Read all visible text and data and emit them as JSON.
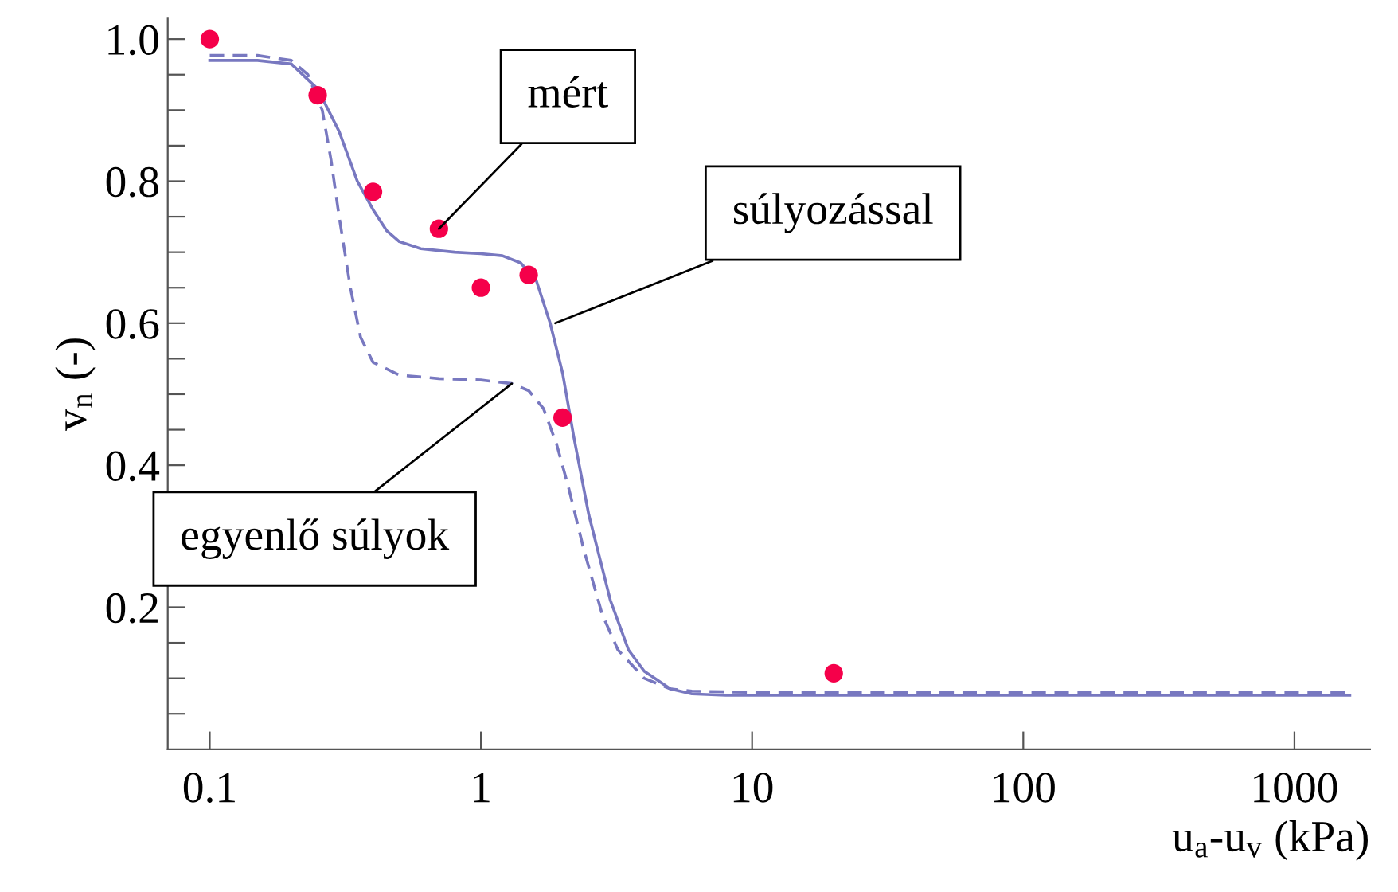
{
  "chart_data": {
    "type": "line",
    "xlabel": "u$_{a}$-u$_{v}$ (kPa)",
    "ylabel": "v$_{n}$ (-)",
    "log": "x",
    "grid": false,
    "legend": false,
    "xlim": [
      0.07,
      1900
    ],
    "ylim": [
      0,
      1.03
    ],
    "xticks": [
      0.1,
      1,
      10,
      100,
      1000
    ],
    "yticks": [
      {
        "value": 0.05,
        "label": null
      },
      {
        "value": 0.1,
        "label": null
      },
      {
        "value": 0.15,
        "label": null
      },
      {
        "value": 0.2,
        "label": "0.2"
      },
      {
        "value": 0.25,
        "label": null
      },
      {
        "value": 0.3,
        "label": null
      },
      {
        "value": 0.35,
        "label": null
      },
      {
        "value": 0.4,
        "label": "0.4"
      },
      {
        "value": 0.45,
        "label": null
      },
      {
        "value": 0.5,
        "label": null
      },
      {
        "value": 0.55,
        "label": null
      },
      {
        "value": 0.6,
        "label": "0.6"
      },
      {
        "value": 0.65,
        "label": null
      },
      {
        "value": 0.7,
        "label": null
      },
      {
        "value": 0.75,
        "label": null
      },
      {
        "value": 0.8,
        "label": "0.8"
      },
      {
        "value": 0.85,
        "label": null
      },
      {
        "value": 0.9,
        "label": null
      },
      {
        "value": 0.95,
        "label": null
      },
      {
        "value": 1.0,
        "label": "1.0"
      }
    ],
    "series": [
      {
        "color": "#7878c0",
        "line_style": "solid",
        "marker": "none",
        "x": [
          0.1,
          0.15,
          0.2,
          0.25,
          0.3,
          0.35,
          0.4,
          0.45,
          0.5,
          0.6,
          0.8,
          1.0,
          1.2,
          1.4,
          1.6,
          1.8,
          2.0,
          2.2,
          2.5,
          3.0,
          3.5,
          4.0,
          5.0,
          6.0,
          8.0,
          20,
          100,
          1600
        ],
        "values": [
          0.97,
          0.97,
          0.965,
          0.93,
          0.87,
          0.8,
          0.76,
          0.73,
          0.715,
          0.705,
          0.7,
          0.698,
          0.695,
          0.685,
          0.66,
          0.6,
          0.53,
          0.44,
          0.33,
          0.21,
          0.14,
          0.11,
          0.085,
          0.078,
          0.076,
          0.076,
          0.076,
          0.076
        ]
      },
      {
        "color": "#7878c0",
        "line_style": "dashed",
        "marker": "none",
        "x": [
          0.1,
          0.15,
          0.2,
          0.23,
          0.26,
          0.28,
          0.3,
          0.33,
          0.36,
          0.4,
          0.5,
          0.7,
          1.0,
          1.3,
          1.5,
          1.7,
          1.9,
          2.1,
          2.4,
          2.8,
          3.2,
          4.0,
          5.0,
          6.0,
          10,
          100,
          1600
        ],
        "values": [
          0.977,
          0.977,
          0.97,
          0.95,
          0.9,
          0.83,
          0.75,
          0.65,
          0.58,
          0.545,
          0.527,
          0.522,
          0.52,
          0.515,
          0.505,
          0.48,
          0.43,
          0.37,
          0.28,
          0.19,
          0.14,
          0.1,
          0.085,
          0.082,
          0.08,
          0.08,
          0.08
        ]
      },
      {
        "type": "scatter",
        "color": "#f5004a",
        "marker": "circle",
        "x": [
          0.1,
          0.25,
          0.4,
          0.7,
          1.0,
          1.5,
          2.0,
          20
        ],
        "values": [
          1.0,
          0.921,
          0.785,
          0.733,
          0.65,
          0.668,
          0.467,
          0.107
        ]
      }
    ],
    "annotations": [
      {
        "text": "mért",
        "x": 0.7,
        "y": 0.733
      },
      {
        "text": "súlyozással",
        "x": 1.88,
        "y": 0.6
      },
      {
        "text": "egyenlő súlyok",
        "x": 1.3,
        "y": 0.515
      }
    ]
  }
}
